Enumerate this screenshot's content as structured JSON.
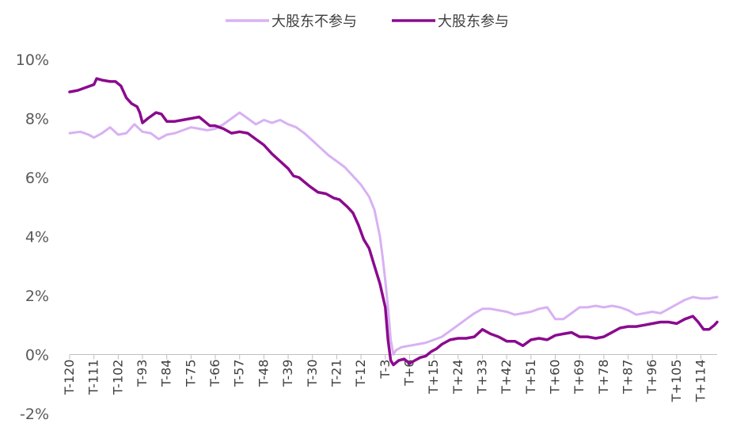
{
  "chart_data": {
    "type": "line",
    "title": "",
    "xlabel": "",
    "ylabel": "",
    "ylim": [
      -2,
      10
    ],
    "yticks": [
      "-2%",
      "0%",
      "2%",
      "4%",
      "6%",
      "8%",
      "10%"
    ],
    "y_tick_values": [
      -2,
      0,
      2,
      4,
      6,
      8,
      10
    ],
    "xticks": [
      "T-120",
      "T-111",
      "T-102",
      "T-93",
      "T-84",
      "T-75",
      "T-66",
      "T-57",
      "T-48",
      "T-39",
      "T-30",
      "T-21",
      "T-12",
      "T-3",
      "T+6",
      "T+15",
      "T+24",
      "T+33",
      "T+42",
      "T+51",
      "T+60",
      "T+69",
      "T+78",
      "T+87",
      "T+96",
      "T+105",
      "T+114"
    ],
    "x_range": [
      -120,
      120
    ],
    "grid": false,
    "legend_position": "top-center",
    "series": [
      {
        "name": "大股东不参与",
        "color": "#D8B1F2",
        "points": [
          [
            -120,
            7.5
          ],
          [
            -116,
            7.55
          ],
          [
            -113,
            7.45
          ],
          [
            -111,
            7.35
          ],
          [
            -108,
            7.5
          ],
          [
            -105,
            7.7
          ],
          [
            -102,
            7.45
          ],
          [
            -99,
            7.5
          ],
          [
            -96,
            7.8
          ],
          [
            -93,
            7.55
          ],
          [
            -90,
            7.5
          ],
          [
            -87,
            7.3
          ],
          [
            -84,
            7.45
          ],
          [
            -81,
            7.5
          ],
          [
            -78,
            7.6
          ],
          [
            -75,
            7.7
          ],
          [
            -72,
            7.65
          ],
          [
            -69,
            7.6
          ],
          [
            -66,
            7.65
          ],
          [
            -63,
            7.8
          ],
          [
            -60,
            8.0
          ],
          [
            -57,
            8.2
          ],
          [
            -54,
            8.0
          ],
          [
            -51,
            7.8
          ],
          [
            -48,
            7.95
          ],
          [
            -45,
            7.85
          ],
          [
            -42,
            7.95
          ],
          [
            -39,
            7.8
          ],
          [
            -36,
            7.7
          ],
          [
            -33,
            7.5
          ],
          [
            -30,
            7.25
          ],
          [
            -27,
            7.0
          ],
          [
            -24,
            6.75
          ],
          [
            -21,
            6.55
          ],
          [
            -18,
            6.35
          ],
          [
            -15,
            6.05
          ],
          [
            -12,
            5.75
          ],
          [
            -9,
            5.35
          ],
          [
            -7,
            4.9
          ],
          [
            -5,
            4.0
          ],
          [
            -4,
            3.3
          ],
          [
            -3,
            2.5
          ],
          [
            -2,
            1.6
          ],
          [
            -1,
            0.5
          ],
          [
            0,
            0.0
          ],
          [
            1,
            0.15
          ],
          [
            3,
            0.25
          ],
          [
            6,
            0.3
          ],
          [
            9,
            0.35
          ],
          [
            12,
            0.4
          ],
          [
            15,
            0.5
          ],
          [
            18,
            0.6
          ],
          [
            21,
            0.8
          ],
          [
            24,
            1.0
          ],
          [
            27,
            1.2
          ],
          [
            30,
            1.4
          ],
          [
            33,
            1.55
          ],
          [
            36,
            1.55
          ],
          [
            39,
            1.5
          ],
          [
            42,
            1.45
          ],
          [
            45,
            1.35
          ],
          [
            48,
            1.4
          ],
          [
            51,
            1.45
          ],
          [
            54,
            1.55
          ],
          [
            57,
            1.6
          ],
          [
            60,
            1.2
          ],
          [
            63,
            1.2
          ],
          [
            66,
            1.4
          ],
          [
            69,
            1.6
          ],
          [
            72,
            1.6
          ],
          [
            75,
            1.65
          ],
          [
            78,
            1.6
          ],
          [
            81,
            1.65
          ],
          [
            84,
            1.6
          ],
          [
            87,
            1.5
          ],
          [
            90,
            1.35
          ],
          [
            93,
            1.4
          ],
          [
            96,
            1.45
          ],
          [
            99,
            1.4
          ],
          [
            102,
            1.55
          ],
          [
            105,
            1.7
          ],
          [
            108,
            1.85
          ],
          [
            111,
            1.95
          ],
          [
            114,
            1.9
          ],
          [
            117,
            1.9
          ],
          [
            120,
            1.95
          ]
        ]
      },
      {
        "name": "大股东参与",
        "color": "#8B0A8E",
        "points": [
          [
            -120,
            8.9
          ],
          [
            -117,
            8.95
          ],
          [
            -114,
            9.05
          ],
          [
            -111,
            9.15
          ],
          [
            -110,
            9.35
          ],
          [
            -108,
            9.3
          ],
          [
            -105,
            9.25
          ],
          [
            -103,
            9.25
          ],
          [
            -101,
            9.1
          ],
          [
            -99,
            8.7
          ],
          [
            -97,
            8.5
          ],
          [
            -95,
            8.4
          ],
          [
            -94,
            8.2
          ],
          [
            -93,
            7.85
          ],
          [
            -91,
            8.0
          ],
          [
            -88,
            8.2
          ],
          [
            -86,
            8.15
          ],
          [
            -84,
            7.9
          ],
          [
            -81,
            7.9
          ],
          [
            -78,
            7.95
          ],
          [
            -75,
            8.0
          ],
          [
            -72,
            8.05
          ],
          [
            -70,
            7.9
          ],
          [
            -68,
            7.75
          ],
          [
            -66,
            7.75
          ],
          [
            -63,
            7.65
          ],
          [
            -60,
            7.5
          ],
          [
            -57,
            7.55
          ],
          [
            -54,
            7.5
          ],
          [
            -51,
            7.3
          ],
          [
            -48,
            7.1
          ],
          [
            -45,
            6.8
          ],
          [
            -42,
            6.55
          ],
          [
            -39,
            6.3
          ],
          [
            -37,
            6.05
          ],
          [
            -35,
            6.0
          ],
          [
            -33,
            5.85
          ],
          [
            -31,
            5.7
          ],
          [
            -28,
            5.5
          ],
          [
            -25,
            5.45
          ],
          [
            -22,
            5.3
          ],
          [
            -20,
            5.25
          ],
          [
            -17,
            5.0
          ],
          [
            -15,
            4.8
          ],
          [
            -13,
            4.4
          ],
          [
            -11,
            3.9
          ],
          [
            -9,
            3.6
          ],
          [
            -7,
            3.0
          ],
          [
            -5,
            2.4
          ],
          [
            -3,
            1.6
          ],
          [
            -2,
            0.5
          ],
          [
            -1,
            -0.2
          ],
          [
            0,
            -0.35
          ],
          [
            2,
            -0.2
          ],
          [
            4,
            -0.15
          ],
          [
            6,
            -0.3
          ],
          [
            8,
            -0.2
          ],
          [
            10,
            -0.1
          ],
          [
            12,
            -0.05
          ],
          [
            14,
            0.1
          ],
          [
            16,
            0.2
          ],
          [
            18,
            0.35
          ],
          [
            21,
            0.5
          ],
          [
            24,
            0.55
          ],
          [
            27,
            0.55
          ],
          [
            30,
            0.6
          ],
          [
            33,
            0.85
          ],
          [
            36,
            0.7
          ],
          [
            39,
            0.6
          ],
          [
            42,
            0.45
          ],
          [
            45,
            0.45
          ],
          [
            48,
            0.3
          ],
          [
            51,
            0.5
          ],
          [
            54,
            0.55
          ],
          [
            57,
            0.5
          ],
          [
            60,
            0.65
          ],
          [
            63,
            0.7
          ],
          [
            66,
            0.75
          ],
          [
            69,
            0.6
          ],
          [
            72,
            0.6
          ],
          [
            75,
            0.55
          ],
          [
            78,
            0.6
          ],
          [
            81,
            0.75
          ],
          [
            84,
            0.9
          ],
          [
            87,
            0.95
          ],
          [
            90,
            0.95
          ],
          [
            93,
            1.0
          ],
          [
            96,
            1.05
          ],
          [
            99,
            1.1
          ],
          [
            102,
            1.1
          ],
          [
            105,
            1.05
          ],
          [
            108,
            1.2
          ],
          [
            111,
            1.3
          ],
          [
            113,
            1.1
          ],
          [
            115,
            0.85
          ],
          [
            117,
            0.85
          ],
          [
            119,
            1.0
          ],
          [
            120,
            1.1
          ]
        ]
      }
    ]
  }
}
